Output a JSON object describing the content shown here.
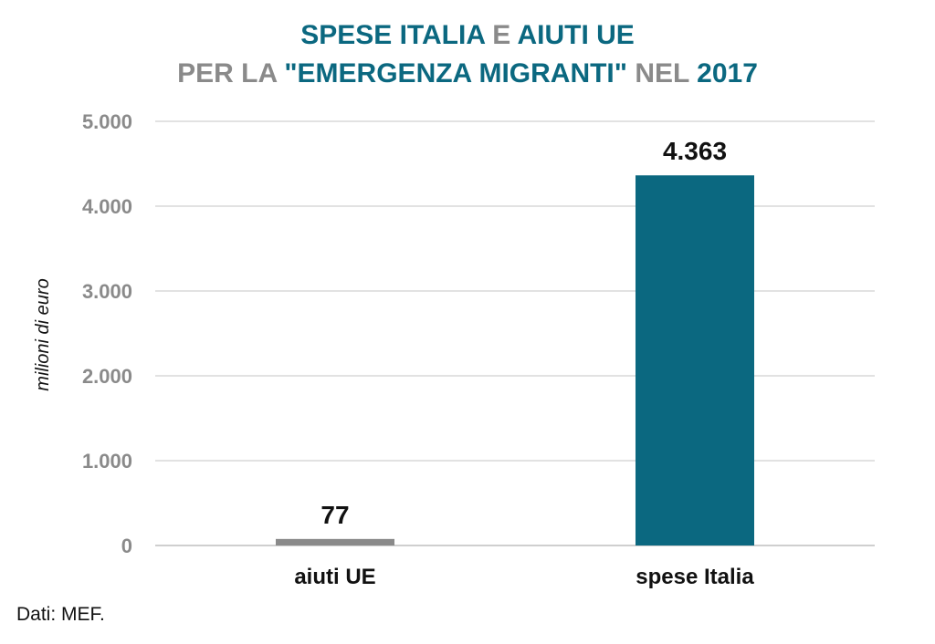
{
  "title": {
    "line1": {
      "part1": "SPESE ITALIA",
      "part2": " E ",
      "part3": "AIUTI UE"
    },
    "line2": {
      "part1": "PER LA ",
      "part2": "\"EMERGENZA MIGRANTI\"",
      "part3": " NEL ",
      "part4": "2017"
    }
  },
  "source": "Dati: MEF.",
  "colors": {
    "teal": "#0b6880",
    "gray": "#8a8a8a",
    "grid": "#d9d9d9",
    "ink": "#111111"
  },
  "chart_data": {
    "type": "bar",
    "categories": [
      "aiuti UE",
      "spese Italia"
    ],
    "values": [
      77,
      4363
    ],
    "value_labels": [
      "77",
      "4.363"
    ],
    "bar_colors": [
      "#8a8a8a",
      "#0b6880"
    ],
    "ylabel": "milioni di euro",
    "ylim": [
      0,
      5000
    ],
    "yticks": [
      0,
      1000,
      2000,
      3000,
      4000,
      5000
    ],
    "ytick_labels": [
      "0",
      "1.000",
      "2.000",
      "3.000",
      "4.000",
      "5.000"
    ],
    "grid": true,
    "legend": "none"
  }
}
